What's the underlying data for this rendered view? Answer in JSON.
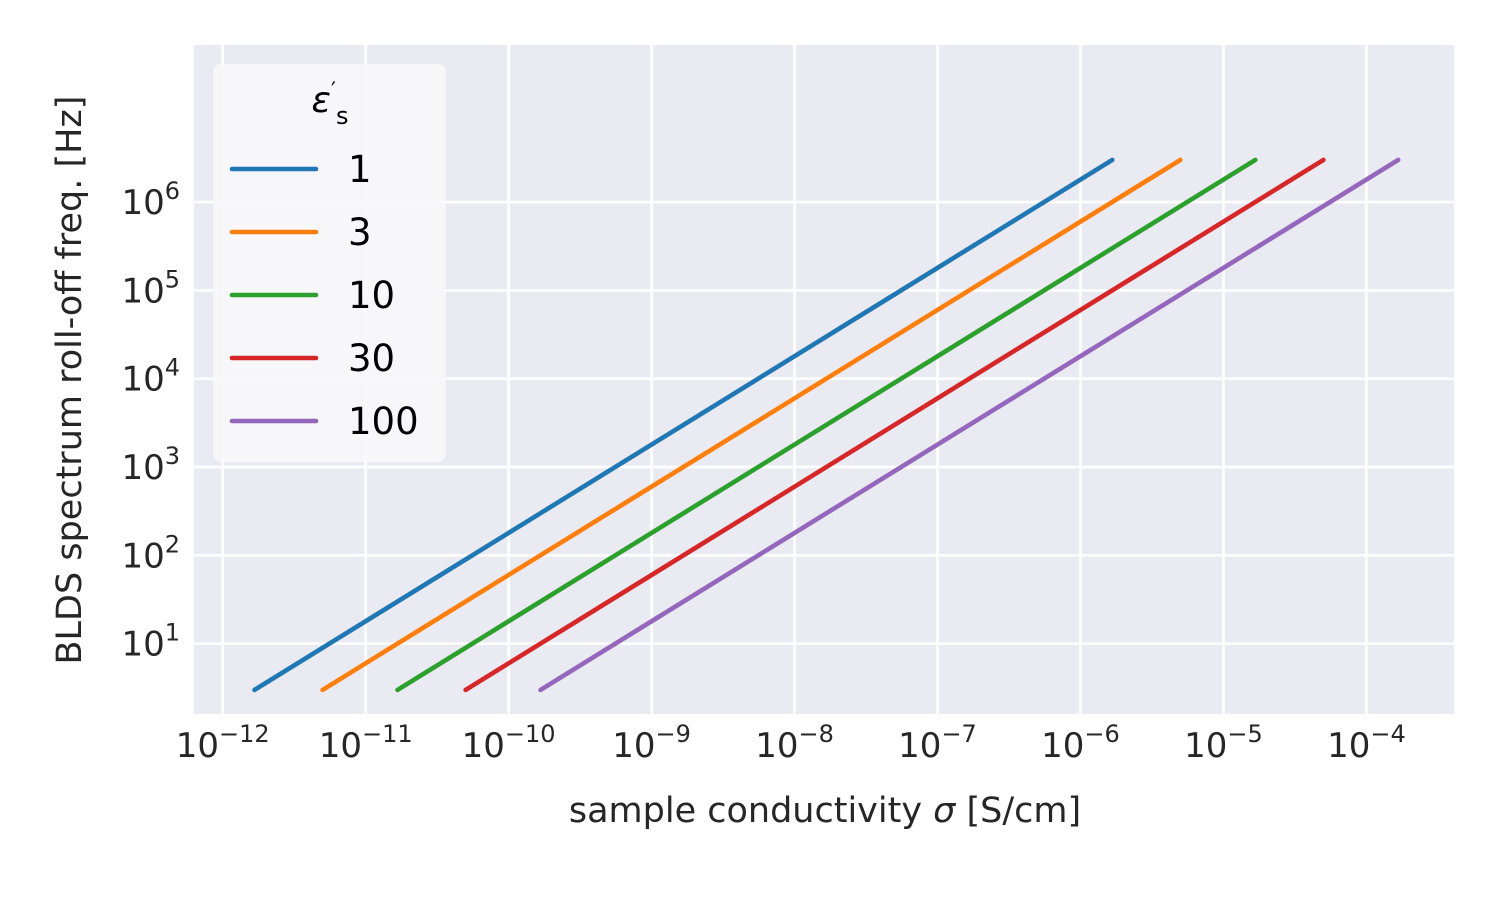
{
  "chart_data": {
    "type": "line",
    "xscale": "log",
    "yscale": "log",
    "xlim": [
      6.3e-13,
      0.00041
    ],
    "ylim": [
      1.6,
      60000000
    ],
    "grid": true,
    "xlabel": {
      "prefix": "sample conductivity ",
      "symbol": "σ",
      "suffix": " [S/cm]"
    },
    "ylabel": "BLDS spectrum roll-off freq. [Hz]",
    "xticks": [
      {
        "value": 1e-12,
        "base": "10",
        "exp": "−12"
      },
      {
        "value": 1e-11,
        "base": "10",
        "exp": "−11"
      },
      {
        "value": 1e-10,
        "base": "10",
        "exp": "−10"
      },
      {
        "value": 1e-09,
        "base": "10",
        "exp": "−9"
      },
      {
        "value": 1e-08,
        "base": "10",
        "exp": "−8"
      },
      {
        "value": 1e-07,
        "base": "10",
        "exp": "−7"
      },
      {
        "value": 1e-06,
        "base": "10",
        "exp": "−6"
      },
      {
        "value": 1e-05,
        "base": "10",
        "exp": "−5"
      },
      {
        "value": 0.0001,
        "base": "10",
        "exp": "−4"
      }
    ],
    "yticks": [
      {
        "value": 10,
        "base": "10",
        "exp": "1"
      },
      {
        "value": 100,
        "base": "10",
        "exp": "2"
      },
      {
        "value": 1000,
        "base": "10",
        "exp": "3"
      },
      {
        "value": 10000,
        "base": "10",
        "exp": "4"
      },
      {
        "value": 100000,
        "base": "10",
        "exp": "5"
      },
      {
        "value": 1000000,
        "base": "10",
        "exp": "6"
      }
    ],
    "legend": {
      "title": {
        "symbol": "ε",
        "prime": "′",
        "sub": "s"
      },
      "location": "upper-left"
    },
    "series": [
      {
        "name": "1",
        "color": "#1f77b4",
        "x": [
          1.67e-12,
          1.67e-06
        ],
        "y": [
          3,
          3000000
        ]
      },
      {
        "name": "3",
        "color": "#ff7f0e",
        "x": [
          5e-12,
          5e-06
        ],
        "y": [
          3,
          3000000
        ]
      },
      {
        "name": "10",
        "color": "#2ca02c",
        "x": [
          1.67e-11,
          1.67e-05
        ],
        "y": [
          3,
          3000000
        ]
      },
      {
        "name": "30",
        "color": "#d62728",
        "x": [
          5e-11,
          5e-05
        ],
        "y": [
          3,
          3000000
        ]
      },
      {
        "name": "100",
        "color": "#9467bd",
        "x": [
          1.67e-10,
          0.000167
        ],
        "y": [
          3,
          3000000
        ]
      }
    ]
  },
  "style": {
    "plot_background": "#eaeaf2",
    "grid_color": "#ffffff",
    "legend_background": "#f8f8fb"
  }
}
